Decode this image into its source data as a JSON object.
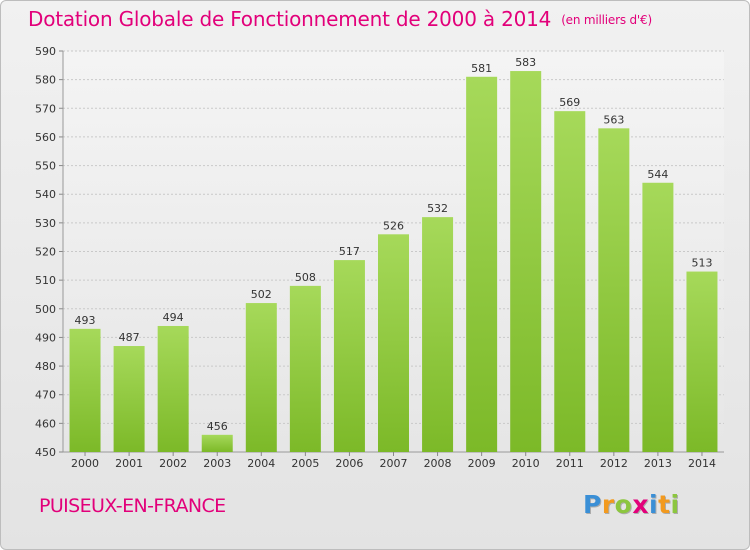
{
  "title": "Dotation Globale de Fonctionnement de 2000 à 2014",
  "unit_note": "(en milliers d'€)",
  "commune": "PUISEUX-EN-FRANCE",
  "logo": {
    "letters": [
      "P",
      "r",
      "o",
      "x",
      "i",
      "t",
      "i"
    ],
    "colors": [
      "#3a8fd6",
      "#f29a1f",
      "#8cc63f",
      "#e2007a",
      "#3a8fd6",
      "#f29a1f",
      "#8cc63f"
    ]
  },
  "chart_data": {
    "type": "bar",
    "categories": [
      "2000",
      "2001",
      "2002",
      "2003",
      "2004",
      "2005",
      "2006",
      "2007",
      "2008",
      "2009",
      "2010",
      "2011",
      "2012",
      "2013",
      "2014"
    ],
    "values": [
      493,
      487,
      494,
      456,
      502,
      508,
      517,
      526,
      532,
      581,
      583,
      569,
      563,
      544,
      513
    ],
    "ylim": [
      450,
      590
    ],
    "yticks": [
      450,
      460,
      470,
      480,
      490,
      500,
      510,
      520,
      530,
      540,
      550,
      560,
      570,
      580,
      590
    ],
    "grid": true,
    "bar_color": "#7cb928",
    "title": "Dotation Globale de Fonctionnement de 2000 à 2014",
    "xlabel": "",
    "ylabel": ""
  }
}
